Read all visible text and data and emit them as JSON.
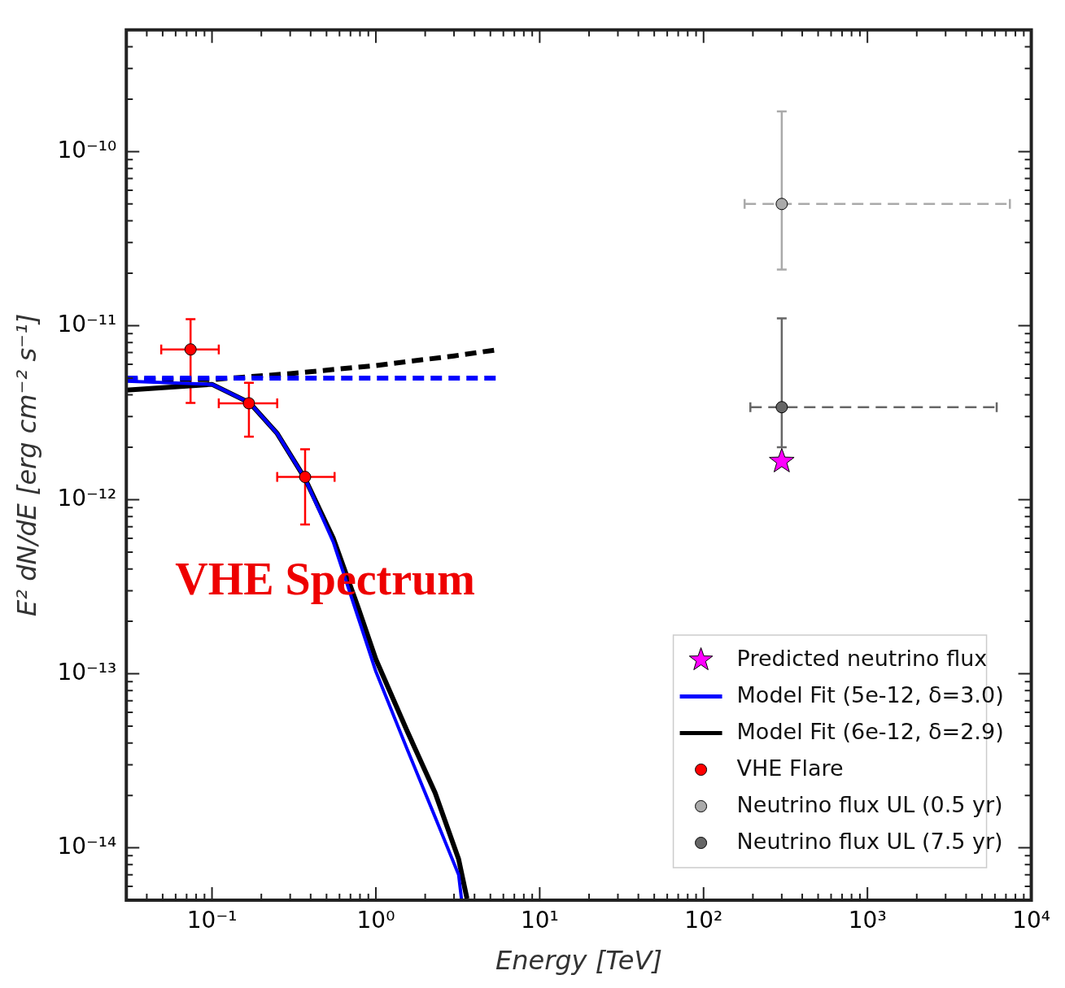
{
  "chart_data": {
    "type": "line",
    "xlabel": "Energy [TeV]",
    "ylabel": "E² dN/dE [erg cm⁻² s⁻¹]",
    "annotations": [
      "VHE Spectrum"
    ],
    "log": "xy",
    "grid": false,
    "legend": "bottom right",
    "xlim": [
      0.03,
      10000
    ],
    "ylim": [
      5e-15,
      5e-10
    ],
    "xticks": [
      {
        "value": 0.03,
        "label": null
      },
      {
        "value": 0.04,
        "label": null
      },
      {
        "value": 0.05,
        "label": null
      },
      {
        "value": 0.06,
        "label": null
      },
      {
        "value": 0.07,
        "label": null
      },
      {
        "value": 0.08,
        "label": null
      },
      {
        "value": 0.09,
        "label": null
      },
      {
        "value": 0.1,
        "label": "10⁻¹"
      },
      {
        "value": 0.2,
        "label": null
      },
      {
        "value": 0.3,
        "label": null
      },
      {
        "value": 0.4,
        "label": null
      },
      {
        "value": 0.5,
        "label": null
      },
      {
        "value": 0.6,
        "label": null
      },
      {
        "value": 0.7,
        "label": null
      },
      {
        "value": 0.8,
        "label": null
      },
      {
        "value": 0.9,
        "label": null
      },
      {
        "value": 1,
        "label": "10⁰"
      },
      {
        "value": 2,
        "label": null
      },
      {
        "value": 3,
        "label": null
      },
      {
        "value": 4,
        "label": null
      },
      {
        "value": 5,
        "label": null
      },
      {
        "value": 6,
        "label": null
      },
      {
        "value": 7,
        "label": null
      },
      {
        "value": 8,
        "label": null
      },
      {
        "value": 9,
        "label": null
      },
      {
        "value": 10,
        "label": "10¹"
      },
      {
        "value": 20,
        "label": null
      },
      {
        "value": 30,
        "label": null
      },
      {
        "value": 40,
        "label": null
      },
      {
        "value": 50,
        "label": null
      },
      {
        "value": 60,
        "label": null
      },
      {
        "value": 70,
        "label": null
      },
      {
        "value": 80,
        "label": null
      },
      {
        "value": 90,
        "label": null
      },
      {
        "value": 100,
        "label": "10²"
      },
      {
        "value": 200,
        "label": null
      },
      {
        "value": 300,
        "label": null
      },
      {
        "value": 400,
        "label": null
      },
      {
        "value": 500,
        "label": null
      },
      {
        "value": 600,
        "label": null
      },
      {
        "value": 700,
        "label": null
      },
      {
        "value": 800,
        "label": null
      },
      {
        "value": 900,
        "label": null
      },
      {
        "value": 1000,
        "label": "10³"
      },
      {
        "value": 2000,
        "label": null
      },
      {
        "value": 3000,
        "label": null
      },
      {
        "value": 4000,
        "label": null
      },
      {
        "value": 5000,
        "label": null
      },
      {
        "value": 6000,
        "label": null
      },
      {
        "value": 7000,
        "label": null
      },
      {
        "value": 8000,
        "label": null
      },
      {
        "value": 9000,
        "label": null
      },
      {
        "value": 10000,
        "label": "10⁴"
      }
    ],
    "yticks": [
      {
        "value": 6e-15,
        "label": null
      },
      {
        "value": 7e-15,
        "label": null
      },
      {
        "value": 8e-15,
        "label": null
      },
      {
        "value": 9e-15,
        "label": null
      },
      {
        "value": 1e-14,
        "label": "10⁻¹⁴"
      },
      {
        "value": 2e-14,
        "label": null
      },
      {
        "value": 3e-14,
        "label": null
      },
      {
        "value": 4e-14,
        "label": null
      },
      {
        "value": 5e-14,
        "label": null
      },
      {
        "value": 6e-14,
        "label": null
      },
      {
        "value": 7e-14,
        "label": null
      },
      {
        "value": 8e-14,
        "label": null
      },
      {
        "value": 9e-14,
        "label": null
      },
      {
        "value": 1e-13,
        "label": "10⁻¹³"
      },
      {
        "value": 2e-13,
        "label": null
      },
      {
        "value": 3e-13,
        "label": null
      },
      {
        "value": 4e-13,
        "label": null
      },
      {
        "value": 5e-13,
        "label": null
      },
      {
        "value": 6e-13,
        "label": null
      },
      {
        "value": 7e-13,
        "label": null
      },
      {
        "value": 8e-13,
        "label": null
      },
      {
        "value": 9e-13,
        "label": null
      },
      {
        "value": 1e-12,
        "label": "10⁻¹²"
      },
      {
        "value": 2e-12,
        "label": null
      },
      {
        "value": 3e-12,
        "label": null
      },
      {
        "value": 4e-12,
        "label": null
      },
      {
        "value": 5e-12,
        "label": null
      },
      {
        "value": 6e-12,
        "label": null
      },
      {
        "value": 7e-12,
        "label": null
      },
      {
        "value": 8e-12,
        "label": null
      },
      {
        "value": 9e-12,
        "label": null
      },
      {
        "value": 1e-11,
        "label": "10⁻¹¹"
      },
      {
        "value": 2e-11,
        "label": null
      },
      {
        "value": 3e-11,
        "label": null
      },
      {
        "value": 4e-11,
        "label": null
      },
      {
        "value": 5e-11,
        "label": null
      },
      {
        "value": 6e-11,
        "label": null
      },
      {
        "value": 7e-11,
        "label": null
      },
      {
        "value": 8e-11,
        "label": null
      },
      {
        "value": 9e-11,
        "label": null
      },
      {
        "value": 1e-10,
        "label": "10⁻¹⁰"
      },
      {
        "value": 2e-10,
        "label": null
      },
      {
        "value": 3e-10,
        "label": null
      },
      {
        "value": 4e-10,
        "label": null
      }
    ],
    "series": [
      {
        "name": "Predicted neutrino flux",
        "type": "scatter",
        "color": "#ff00ff",
        "marker": "star",
        "x": [
          300
        ],
        "values": [
          1.66e-12
        ]
      },
      {
        "name": "Model Fit (5e-12, δ=3.0)",
        "color": "#0000ff",
        "marker": "none",
        "line_style": "solid",
        "x": [
          0.03,
          0.1,
          0.17,
          0.25,
          0.37,
          0.55,
          0.78,
          1.0,
          1.55,
          2.3,
          3.2,
          3.33
        ],
        "values": [
          4.8e-12,
          4.6e-12,
          3.6e-12,
          2.4e-12,
          1.32e-12,
          5.7e-13,
          2.1e-13,
          1.03e-13,
          3.7e-14,
          1.5e-14,
          7e-15,
          5.1e-15
        ]
      },
      {
        "name": "Model Fit (6e-12, δ=2.9)",
        "color": "#000000",
        "marker": "none",
        "line_style": "solid",
        "x": [
          0.03,
          0.1,
          0.17,
          0.25,
          0.37,
          0.55,
          0.78,
          1.0,
          1.55,
          2.3,
          3.2,
          3.6
        ],
        "values": [
          4.26e-12,
          4.6e-12,
          3.6e-12,
          2.4e-12,
          1.32e-12,
          6e-13,
          2.4e-13,
          1.21e-13,
          4.7e-14,
          2.07e-14,
          8.6e-15,
          5.1e-15
        ]
      },
      {
        "name": "VHE Flare",
        "type": "scatter",
        "color": "#ff0000",
        "marker": "circle",
        "x": [
          0.074,
          0.168,
          0.37
        ],
        "values": [
          7.3e-12,
          3.58e-12,
          1.35e-12
        ],
        "errors": [
          [
            3.6e-12,
            1.09e-11
          ],
          [
            2.3e-12,
            4.7e-12
          ],
          [
            7.2e-13,
            1.95e-12
          ]
        ],
        "xerrors": [
          [
            0.049,
            0.11
          ],
          [
            0.11,
            0.25
          ],
          [
            0.25,
            0.56
          ]
        ]
      },
      {
        "name": "Neutrino flux UL (0.5 yr)",
        "type": "scatter",
        "color": "#aaaaaa",
        "marker": "circle",
        "line_style": "dashed",
        "x": [
          300
        ],
        "values": [
          5e-11
        ],
        "errors": [
          [
            2.1e-11,
            1.7e-10
          ]
        ],
        "xerrors": [
          [
            178,
            7400
          ]
        ]
      },
      {
        "name": "Neutrino flux UL (7.5 yr)",
        "type": "scatter",
        "color": "#666666",
        "marker": "circle",
        "line_style": "dashed",
        "x": [
          300
        ],
        "values": [
          3.4e-12
        ],
        "errors": [
          [
            2e-12,
            1.1e-11
          ]
        ],
        "xerrors": [
          [
            193,
            6150
          ]
        ]
      },
      {
        "color": "#0000ff",
        "marker": "none",
        "line_style": "dashed",
        "x": [
          0.03,
          5.7
        ],
        "values": [
          5e-12,
          5e-12
        ]
      },
      {
        "color": "#000000",
        "marker": "none",
        "line_style": "dashed",
        "x": [
          0.03,
          0.1,
          0.3,
          1,
          3,
          5.7
        ],
        "values": [
          4.9e-12,
          4.9e-12,
          5.3e-12,
          5.9e-12,
          6.7e-12,
          7.3e-12
        ]
      }
    ]
  }
}
